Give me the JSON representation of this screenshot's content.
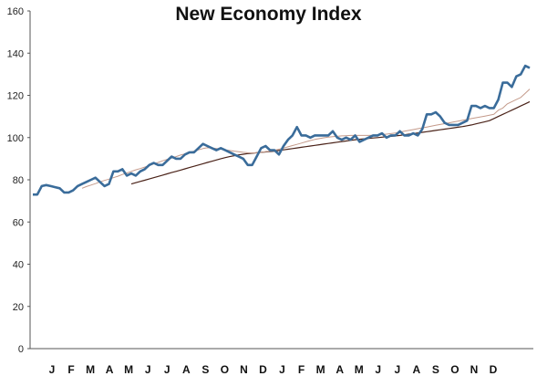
{
  "chart_data": {
    "type": "line",
    "title": "New Economy Index",
    "xlabel": "",
    "ylabel": "",
    "ylim": [
      0,
      160
    ],
    "yticks": [
      0,
      20,
      40,
      60,
      80,
      100,
      120,
      140,
      160
    ],
    "x_tick_labels": [
      "J",
      "F",
      "M",
      "A",
      "M",
      "J",
      "J",
      "A",
      "S",
      "O",
      "N",
      "D",
      "J",
      "F",
      "M",
      "A",
      "M",
      "J",
      "J",
      "A",
      "S",
      "O",
      "N",
      "D"
    ],
    "grid": false,
    "legend": "none",
    "series": [
      {
        "color": "#3a6c9a",
        "values": [
          73,
          73,
          77,
          77.5,
          77,
          76.5,
          76,
          74,
          74,
          75,
          77,
          78,
          79,
          80,
          81,
          79,
          77,
          78,
          84,
          84,
          85,
          82,
          83,
          82,
          84,
          85,
          87,
          88,
          87,
          87,
          89,
          91,
          90,
          90,
          92,
          93,
          93,
          95,
          97,
          96,
          95,
          94,
          95,
          94,
          93,
          92,
          91,
          90,
          87,
          87,
          91,
          95,
          96,
          94,
          94,
          92,
          96,
          99,
          101,
          105,
          101,
          101,
          100,
          101,
          101,
          101,
          101,
          103,
          100,
          99,
          100,
          99,
          101,
          98,
          99,
          100,
          101,
          101,
          102,
          100,
          101,
          101,
          103,
          101,
          101,
          102,
          101,
          104,
          111,
          111,
          112,
          110,
          107,
          106,
          106,
          106,
          107,
          108,
          115,
          115,
          114,
          115,
          114,
          114,
          118,
          126,
          126,
          124,
          129,
          130,
          134,
          133
        ]
      },
      {
        "color": "#c49a8a",
        "values": [
          null,
          null,
          null,
          null,
          null,
          null,
          null,
          null,
          null,
          null,
          null,
          76,
          76.8,
          77.5,
          78.2,
          79,
          79.7,
          80.3,
          81,
          81.7,
          82.5,
          83.2,
          84,
          84.7,
          85.3,
          86,
          86.7,
          87.5,
          88.2,
          89,
          89.7,
          90.3,
          91,
          91.7,
          92.3,
          93,
          93.6,
          94.2,
          94.8,
          95.2,
          95.1,
          94.8,
          94.5,
          94.2,
          93.9,
          93.6,
          93.3,
          93,
          92.8,
          92.7,
          92.8,
          93,
          93.3,
          93.6,
          94,
          94.5,
          95,
          95.6,
          96.2,
          96.8,
          97.4,
          98,
          98.6,
          99.1,
          99.5,
          99.9,
          100.2,
          100.4,
          100.6,
          100.8,
          100.9,
          101,
          101,
          101,
          101,
          101,
          101.1,
          101.2,
          101.4,
          101.6,
          101.9,
          102.2,
          102.6,
          103,
          103.4,
          103.8,
          104.2,
          104.6,
          105,
          105.4,
          105.8,
          106.2,
          106.6,
          107,
          107.4,
          107.8,
          108.2,
          108.6,
          109,
          109.4,
          109.8,
          110.2,
          110.6,
          111,
          113,
          114,
          116,
          117,
          118,
          119,
          121,
          123
        ]
      },
      {
        "color": "#4a2218",
        "values": [
          null,
          null,
          null,
          null,
          null,
          null,
          null,
          null,
          null,
          null,
          null,
          null,
          null,
          null,
          null,
          null,
          null,
          null,
          null,
          null,
          null,
          null,
          78,
          78.6,
          79.2,
          79.8,
          80.4,
          81,
          81.6,
          82.2,
          82.8,
          83.4,
          84,
          84.6,
          85.2,
          85.8,
          86.4,
          87,
          87.6,
          88.2,
          88.8,
          89.4,
          90,
          90.5,
          91,
          91.4,
          91.8,
          92.1,
          92.4,
          92.6,
          92.8,
          93,
          93.2,
          93.4,
          93.6,
          93.9,
          94.2,
          94.5,
          94.8,
          95.1,
          95.4,
          95.7,
          96,
          96.3,
          96.6,
          96.9,
          97.2,
          97.5,
          97.8,
          98.1,
          98.4,
          98.7,
          99,
          99.2,
          99.4,
          99.6,
          99.8,
          100,
          100.2,
          100.4,
          100.6,
          100.8,
          101,
          101.3,
          101.6,
          101.9,
          102.2,
          102.5,
          102.8,
          103.1,
          103.4,
          103.7,
          104,
          104.3,
          104.6,
          104.9,
          105.2,
          105.6,
          106,
          106.5,
          107,
          107.5,
          108,
          109,
          110,
          111,
          112,
          113,
          114,
          115,
          116,
          117
        ]
      }
    ]
  }
}
